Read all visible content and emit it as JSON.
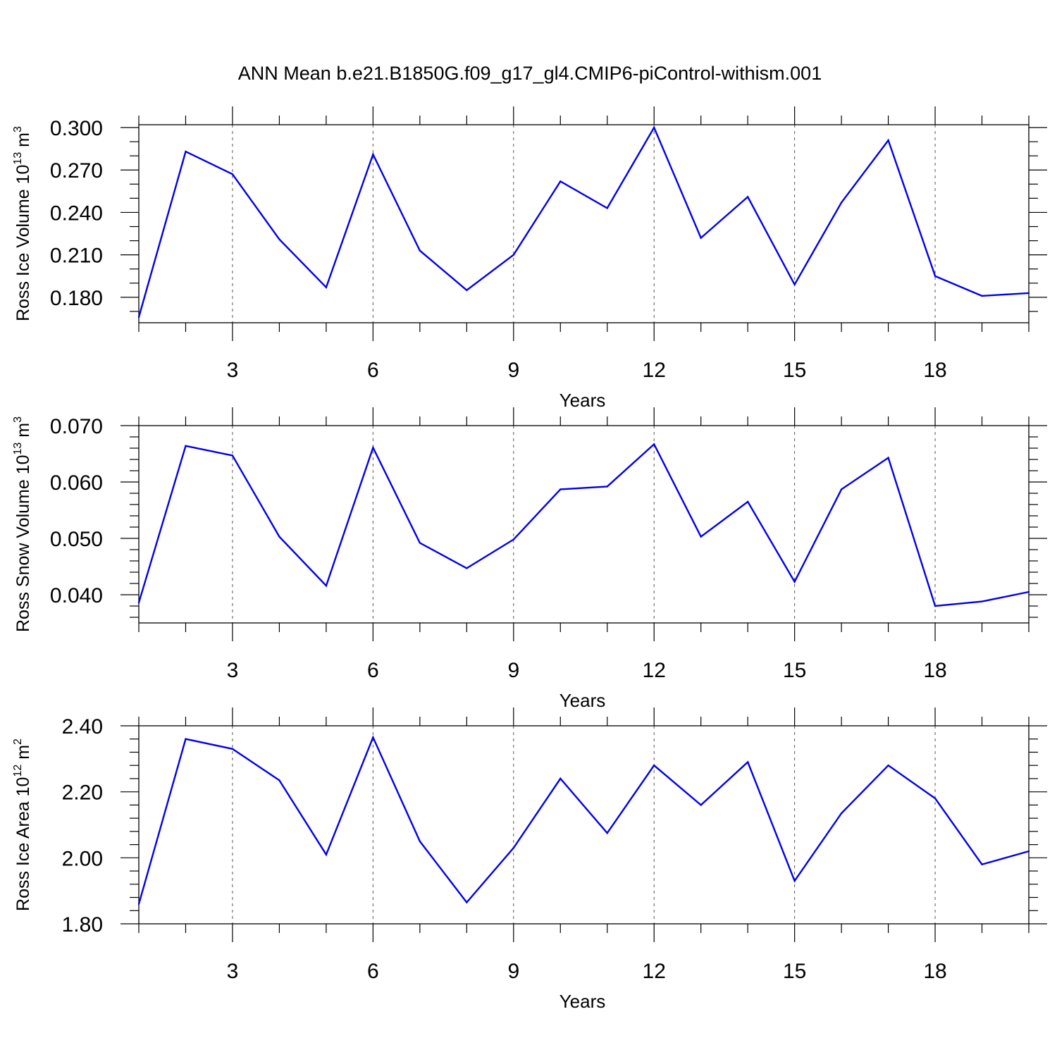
{
  "figure": {
    "title": "ANN Mean b.e21.B1850G.f09_g17_gl4.CMIP6-piControl-withism.001"
  },
  "chart_data": [
    {
      "type": "line",
      "ylabel": {
        "text": "Ross Ice Volume 10",
        "exponent": "13",
        "unit": "m",
        "unit_exponent": "3"
      },
      "xlabel": "Years",
      "xlim": [
        1,
        20
      ],
      "ylim": [
        0.162,
        0.302
      ],
      "x_ticks": [
        3,
        6,
        9,
        12,
        15,
        18
      ],
      "y_ticks": [
        0.18,
        0.21,
        0.24,
        0.27,
        0.3
      ],
      "y_tick_labels": [
        "0.180",
        "0.210",
        "0.240",
        "0.270",
        "0.300"
      ],
      "y_minor_step": 0.01,
      "grid": "vertical-dashed-at-major-x",
      "series": [
        {
          "color": "#0000ee",
          "x": [
            1,
            2,
            3,
            4,
            5,
            6,
            7,
            8,
            9,
            10,
            11,
            12,
            13,
            14,
            15,
            16,
            17,
            18,
            19,
            20
          ],
          "values": [
            0.166,
            0.283,
            0.267,
            0.221,
            0.187,
            0.281,
            0.213,
            0.185,
            0.21,
            0.262,
            0.243,
            0.3,
            0.222,
            0.251,
            0.189,
            0.247,
            0.291,
            0.195,
            0.181,
            0.183
          ]
        }
      ]
    },
    {
      "type": "line",
      "ylabel": {
        "text": "Ross Snow Volume 10",
        "exponent": "13",
        "unit": "m",
        "unit_exponent": "3"
      },
      "xlabel": "Years",
      "xlim": [
        1,
        20
      ],
      "ylim": [
        0.035,
        0.07
      ],
      "x_ticks": [
        3,
        6,
        9,
        12,
        15,
        18
      ],
      "y_ticks": [
        0.04,
        0.05,
        0.06,
        0.07
      ],
      "y_tick_labels": [
        "0.040",
        "0.050",
        "0.060",
        "0.070"
      ],
      "y_minor_step": 0.002,
      "grid": "vertical-dashed-at-major-x",
      "series": [
        {
          "color": "#0000ee",
          "x": [
            1,
            2,
            3,
            4,
            5,
            6,
            7,
            8,
            9,
            10,
            11,
            12,
            13,
            14,
            15,
            16,
            17,
            18,
            19,
            20
          ],
          "values": [
            0.0386,
            0.0664,
            0.0647,
            0.0503,
            0.0416,
            0.0661,
            0.0492,
            0.0447,
            0.0498,
            0.0587,
            0.0592,
            0.0667,
            0.0503,
            0.0565,
            0.0423,
            0.0587,
            0.0643,
            0.038,
            0.0388,
            0.0405
          ]
        }
      ]
    },
    {
      "type": "line",
      "ylabel": {
        "text": "Ross Ice Area 10",
        "exponent": "12",
        "unit": "m",
        "unit_exponent": "2"
      },
      "xlabel": "Years",
      "xlim": [
        1,
        20
      ],
      "ylim": [
        1.8,
        2.4
      ],
      "x_ticks": [
        3,
        6,
        9,
        12,
        15,
        18
      ],
      "y_ticks": [
        1.8,
        2.0,
        2.2,
        2.4
      ],
      "y_tick_labels": [
        "1.80",
        "2.00",
        "2.20",
        "2.40"
      ],
      "y_minor_step": 0.04,
      "grid": "vertical-dashed-at-major-x",
      "series": [
        {
          "color": "#0000ee",
          "x": [
            1,
            2,
            3,
            4,
            5,
            6,
            7,
            8,
            9,
            10,
            11,
            12,
            13,
            14,
            15,
            16,
            17,
            18,
            19,
            20
          ],
          "values": [
            1.86,
            2.36,
            2.33,
            2.235,
            2.01,
            2.365,
            2.05,
            1.865,
            2.03,
            2.24,
            2.075,
            2.28,
            2.16,
            2.29,
            1.93,
            2.135,
            2.28,
            2.18,
            1.98,
            2.02
          ]
        }
      ]
    }
  ]
}
